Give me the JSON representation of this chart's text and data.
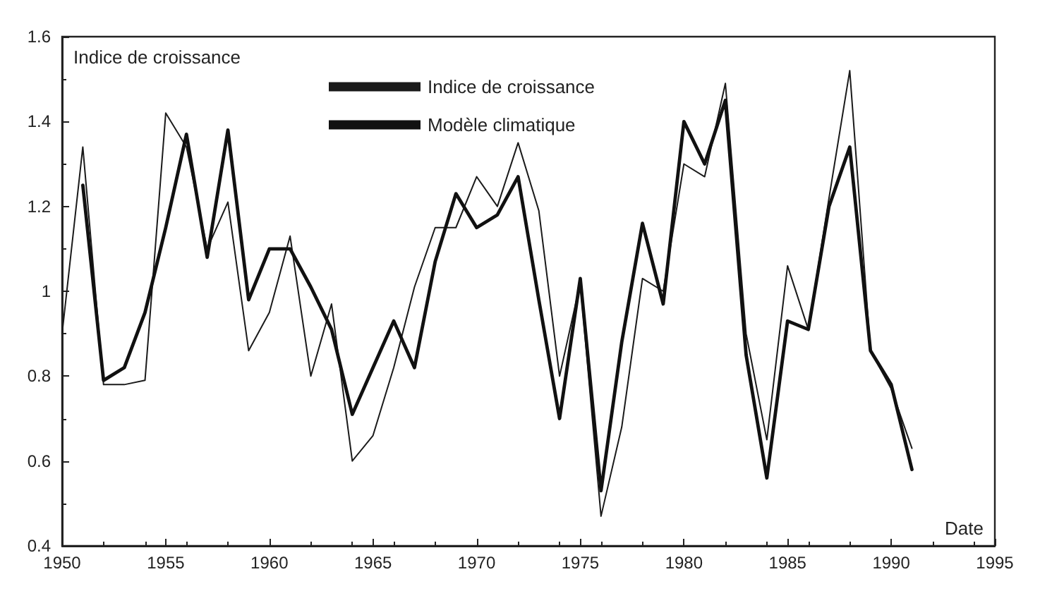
{
  "chart_data": {
    "type": "line",
    "ylabel": "Indice de croissance",
    "xlabel": "Date",
    "x": [
      1950,
      1951,
      1952,
      1953,
      1954,
      1955,
      1956,
      1957,
      1958,
      1959,
      1960,
      1961,
      1962,
      1963,
      1964,
      1965,
      1966,
      1967,
      1968,
      1969,
      1970,
      1971,
      1972,
      1973,
      1974,
      1975,
      1976,
      1977,
      1978,
      1979,
      1980,
      1981,
      1982,
      1983,
      1984,
      1985,
      1986,
      1987,
      1988,
      1989,
      1990,
      1991
    ],
    "series": [
      {
        "name": "Indice de croissance",
        "color": "#1a1a1a",
        "values": [
          0.9,
          1.34,
          0.78,
          0.78,
          0.79,
          1.42,
          1.34,
          1.1,
          1.21,
          0.86,
          0.95,
          1.13,
          0.8,
          0.97,
          0.6,
          0.66,
          0.82,
          1.01,
          1.15,
          1.15,
          1.27,
          1.2,
          1.35,
          1.19,
          0.8,
          1.02,
          0.47,
          0.68,
          1.03,
          1.0,
          1.3,
          1.27,
          1.49,
          0.9,
          0.65,
          1.06,
          0.91,
          1.22,
          1.52,
          0.86,
          0.77,
          0.63
        ]
      },
      {
        "name": "Modèle climatique",
        "color": "#111111",
        "values": [
          null,
          1.25,
          0.79,
          0.82,
          0.95,
          1.15,
          1.37,
          1.08,
          1.38,
          0.98,
          1.1,
          1.1,
          1.01,
          0.91,
          0.71,
          0.82,
          0.93,
          0.82,
          1.07,
          1.23,
          1.15,
          1.18,
          1.27,
          0.98,
          0.7,
          1.03,
          0.53,
          0.88,
          1.16,
          0.97,
          1.4,
          1.3,
          1.45,
          0.85,
          0.56,
          0.93,
          0.91,
          1.2,
          1.34,
          0.86,
          0.78,
          0.58
        ]
      }
    ],
    "xlim": [
      1950,
      1995
    ],
    "xticks": [
      1950,
      1955,
      1960,
      1965,
      1970,
      1975,
      1980,
      1985,
      1990,
      1995
    ],
    "ylim": [
      0.4,
      1.6
    ],
    "yticks": [
      0.4,
      0.6,
      0.8,
      1,
      1.2,
      1.4,
      1.6
    ],
    "grid": false,
    "legend": "top",
    "marker": "none",
    "line_style": "solid"
  }
}
